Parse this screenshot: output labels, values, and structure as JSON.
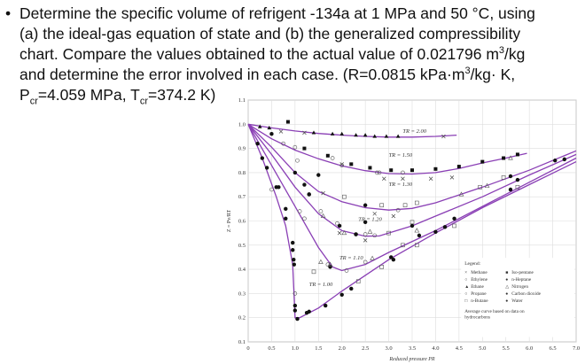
{
  "problem": {
    "bullet": "•",
    "lines": [
      "Determine the specific volume of refrigent -134a at 1 MPa and 50 °C, using",
      "(a) the ideal-gas equation of state and (b) the generalized compressibility",
      "chart. Compare the values obtained to the actual value of 0.021796 m",
      "and determine the error involved in each case. (R=0.0815 kPa·m",
      "P"
    ],
    "line3_sup": "3",
    "line3_tail": "/kg",
    "line4_sup": "3",
    "line4_tail": "/kg· K,",
    "line5_sub1": "cr",
    "line5_mid": "=4.059 MPa, T",
    "line5_sub2": "cr",
    "line5_tail": "=374.2 K)"
  },
  "chart_data": {
    "type": "line",
    "xlabel": "Reduced pressure P_R",
    "ylabel": "Z = Pv/RT",
    "xlim": [
      0,
      7.0
    ],
    "ylim": [
      0.1,
      1.1
    ],
    "xticks": [
      "0",
      "0.5",
      "1.0",
      "1.5",
      "2.0",
      "2.5",
      "3.0",
      "3.5",
      "4.0",
      "4.5",
      "5.0",
      "5.5",
      "6.0",
      "6.5",
      "7.0"
    ],
    "yticks": [
      "0.1",
      "0.2",
      "0.3",
      "0.4",
      "0.5",
      "0.6",
      "0.7",
      "0.8",
      "0.9",
      "1.0",
      "1.1"
    ],
    "grid": true,
    "curve_color": "#8a3fb5",
    "series": [
      {
        "name": "T_R = 2.00",
        "x": [
          0,
          0.5,
          1,
          1.5,
          2,
          2.5,
          3,
          3.5,
          4,
          4.45
        ],
        "y": [
          1.0,
          0.985,
          0.972,
          0.962,
          0.955,
          0.95,
          0.947,
          0.947,
          0.95,
          0.955
        ]
      },
      {
        "name": "T_R = 1.50",
        "x": [
          0,
          0.5,
          1,
          1.5,
          2,
          2.5,
          3,
          3.5,
          4,
          4.5,
          5,
          5.5,
          5.95
        ],
        "y": [
          1.0,
          0.94,
          0.893,
          0.857,
          0.828,
          0.808,
          0.796,
          0.794,
          0.8,
          0.817,
          0.84,
          0.86,
          0.88
        ]
      },
      {
        "name": "T_R = 1.30",
        "x": [
          0,
          0.5,
          1,
          1.5,
          2,
          2.5,
          3,
          3.5,
          4,
          5,
          6,
          7
        ],
        "y": [
          1.0,
          0.905,
          0.8,
          0.722,
          0.68,
          0.655,
          0.645,
          0.652,
          0.675,
          0.74,
          0.81,
          0.89
        ]
      },
      {
        "name": "T_R = 1.20",
        "x": [
          0,
          0.5,
          1,
          1.5,
          2,
          2.5,
          2.8,
          3.5,
          4,
          5,
          6,
          7
        ],
        "y": [
          1.0,
          0.875,
          0.74,
          0.63,
          0.56,
          0.537,
          0.538,
          0.58,
          0.62,
          0.7,
          0.79,
          0.875
        ]
      },
      {
        "name": "T_R = 1.10",
        "x": [
          0,
          0.5,
          1,
          1.5,
          1.8,
          2,
          2.5,
          3,
          4,
          5,
          6,
          7
        ],
        "y": [
          1.0,
          0.83,
          0.66,
          0.49,
          0.41,
          0.395,
          0.42,
          0.47,
          0.56,
          0.66,
          0.76,
          0.86
        ]
      },
      {
        "name": "T_R = 1.00",
        "x": [
          0,
          0.3,
          0.6,
          0.8,
          0.95,
          1.0,
          1.1,
          1.5,
          2,
          3,
          4,
          5,
          6,
          7
        ],
        "y": [
          1.0,
          0.86,
          0.7,
          0.58,
          0.42,
          0.2,
          0.2,
          0.24,
          0.31,
          0.44,
          0.55,
          0.655,
          0.75,
          0.845
        ]
      }
    ],
    "points": [
      {
        "name": "Methane",
        "marker": "x",
        "x": [
          0.7,
          1.2,
          2.0,
          2.9,
          3.3,
          3.9,
          4.35,
          1.6,
          2.7,
          3.1,
          2.5,
          1.95,
          4.17
        ],
        "y": [
          0.97,
          0.965,
          0.835,
          0.775,
          0.775,
          0.775,
          0.78,
          0.715,
          0.63,
          0.62,
          0.52,
          0.55,
          0.95
        ]
      },
      {
        "name": "Ethylene",
        "marker": "o",
        "x": [
          0.75,
          1.0,
          1.8,
          2.8,
          3.2,
          1.3,
          1.9,
          2.7,
          0.5,
          1.1,
          2.1,
          1.0
        ],
        "y": [
          0.92,
          0.905,
          0.86,
          0.8,
          0.645,
          0.71,
          0.59,
          0.54,
          0.73,
          0.64,
          0.395,
          0.3
        ]
      },
      {
        "name": "Ethane",
        "marker": "^",
        "x": [
          0.25,
          0.45,
          1.4,
          1.8,
          2.0,
          2.3,
          2.5,
          2.7,
          2.95,
          3.2
        ],
        "y": [
          0.99,
          0.985,
          0.965,
          0.96,
          0.96,
          0.955,
          0.955,
          0.95,
          0.95,
          0.95
        ]
      },
      {
        "name": "Propane",
        "marker": "o",
        "x": [
          1.05,
          2.0,
          2.75,
          3.3,
          1.55,
          2.3,
          2.5,
          1.7,
          1.2,
          2.5
        ],
        "y": [
          0.85,
          0.83,
          0.8,
          0.8,
          0.64,
          0.545,
          0.545,
          0.42,
          0.61,
          0.43
        ]
      },
      {
        "name": "n-Butane",
        "marker": "s",
        "x": [
          2.05,
          2.85,
          3.35,
          3.6,
          3.0,
          3.5,
          4.4,
          4.95,
          5.45,
          5.75,
          1.4,
          3.3,
          2.35,
          2.85,
          3.6
        ],
        "y": [
          0.7,
          0.665,
          0.665,
          0.675,
          0.55,
          0.595,
          0.58,
          0.74,
          0.78,
          0.74,
          0.39,
          0.5,
          0.35,
          0.41,
          0.5
        ]
      },
      {
        "name": "Iso-pentane",
        "marker": "sf",
        "x": [
          0.85,
          1.2,
          1.7,
          2.2,
          2.6,
          3.05,
          3.5,
          4.0,
          4.5,
          5.0,
          5.45,
          5.75
        ],
        "y": [
          1.01,
          0.9,
          0.87,
          0.835,
          0.82,
          0.81,
          0.81,
          0.815,
          0.825,
          0.845,
          0.86,
          0.875
        ]
      },
      {
        "name": "n-Heptane",
        "marker": "of",
        "x": [
          0.5,
          1.0,
          1.5,
          2.5,
          3.05,
          1.3,
          1.95,
          2.3,
          1.75,
          1.2,
          1.25
        ],
        "y": [
          0.96,
          0.8,
          0.79,
          0.665,
          0.45,
          0.71,
          0.58,
          0.545,
          0.41,
          0.75,
          0.22
        ]
      },
      {
        "name": "Nitrogen",
        "marker": "^o",
        "x": [
          1.6,
          2.05,
          2.6,
          3.6,
          4.55,
          5.1,
          5.6,
          1.75,
          2.65,
          1.55
        ],
        "y": [
          0.62,
          0.55,
          0.555,
          0.56,
          0.71,
          0.745,
          0.86,
          0.42,
          0.445,
          0.43
        ]
      },
      {
        "name": "Carbon dioxide",
        "marker": "of",
        "x": [
          0.3,
          0.6,
          0.8,
          0.95,
          0.98,
          1.0,
          2.5,
          3.5,
          5.6,
          6.55
        ],
        "y": [
          0.86,
          0.74,
          0.65,
          0.48,
          0.42,
          0.25,
          0.595,
          0.58,
          0.785,
          0.85
        ]
      },
      {
        "name": "Water",
        "marker": "of",
        "x": [
          0.2,
          0.4,
          0.65,
          0.8,
          0.95,
          0.97,
          1.0,
          1.05,
          1.3,
          1.65,
          2.0,
          2.2,
          3.1,
          3.65,
          4.0,
          4.2,
          4.4,
          5.6,
          5.75,
          6.75
        ],
        "y": [
          0.92,
          0.82,
          0.74,
          0.61,
          0.51,
          0.44,
          0.23,
          0.195,
          0.225,
          0.25,
          0.295,
          0.32,
          0.44,
          0.54,
          0.555,
          0.575,
          0.61,
          0.73,
          0.77,
          0.855
        ]
      }
    ],
    "legend": {
      "title": "Legend:",
      "placement": "bottom-right",
      "entries": [
        {
          "symbol": "×",
          "label": "Methane"
        },
        {
          "symbol": "○",
          "label": "Ethylene"
        },
        {
          "symbol": "▲",
          "label": "Ethane"
        },
        {
          "symbol": "○",
          "label": "Propane"
        },
        {
          "symbol": "□",
          "label": "n-Butane"
        },
        {
          "symbol": "■",
          "label": "Iso-pentane"
        },
        {
          "symbol": "●",
          "label": "n-Heptane"
        },
        {
          "symbol": "△",
          "label": "Nitrogen"
        },
        {
          "symbol": "●",
          "label": "Carbon dioxide"
        },
        {
          "symbol": "●",
          "label": "Water"
        }
      ],
      "note_lines": [
        "Average curve based on data on",
        "hydrocarbons"
      ]
    }
  }
}
